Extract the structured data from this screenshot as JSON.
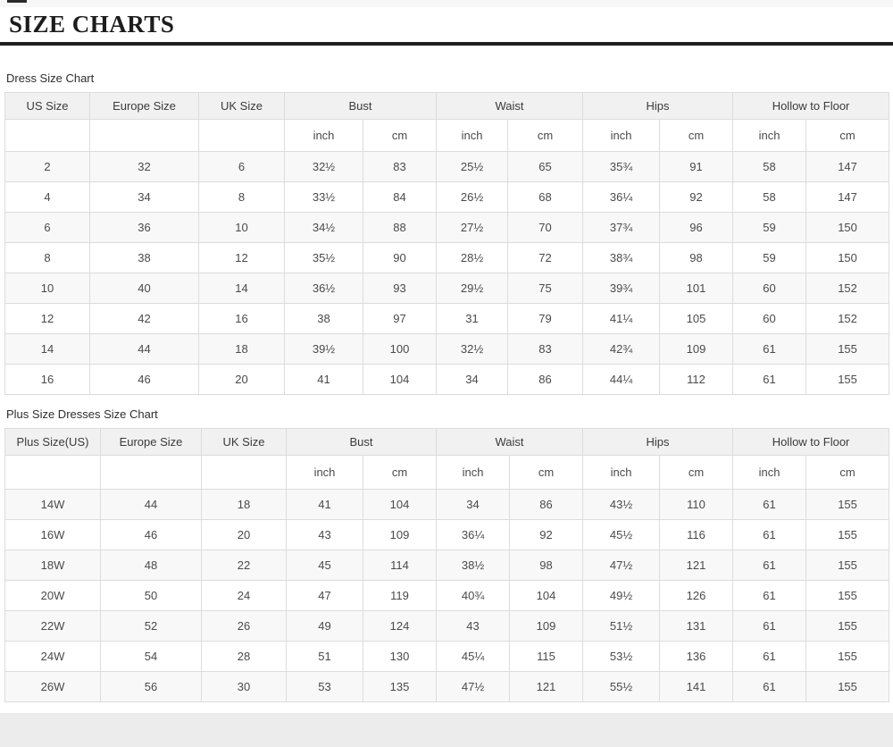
{
  "page": {
    "title": "SIZE CHARTS"
  },
  "tables": [
    {
      "caption": "Dress Size Chart",
      "columns": [
        {
          "label": "US Size",
          "span": 1
        },
        {
          "label": "Europe Size",
          "span": 1
        },
        {
          "label": "UK Size",
          "span": 1
        },
        {
          "label": "Bust",
          "span": 2
        },
        {
          "label": "Waist",
          "span": 2
        },
        {
          "label": "Hips",
          "span": 2
        },
        {
          "label": "Hollow to Floor",
          "span": 2
        }
      ],
      "units": [
        "",
        "",
        "",
        "inch",
        "cm",
        "inch",
        "cm",
        "inch",
        "cm",
        "inch",
        "cm"
      ],
      "rows": [
        [
          "2",
          "32",
          "6",
          "32½",
          "83",
          "25½",
          "65",
          "35¾",
          "91",
          "58",
          "147"
        ],
        [
          "4",
          "34",
          "8",
          "33½",
          "84",
          "26½",
          "68",
          "36¼",
          "92",
          "58",
          "147"
        ],
        [
          "6",
          "36",
          "10",
          "34½",
          "88",
          "27½",
          "70",
          "37¾",
          "96",
          "59",
          "150"
        ],
        [
          "8",
          "38",
          "12",
          "35½",
          "90",
          "28½",
          "72",
          "38¾",
          "98",
          "59",
          "150"
        ],
        [
          "10",
          "40",
          "14",
          "36½",
          "93",
          "29½",
          "75",
          "39¾",
          "101",
          "60",
          "152"
        ],
        [
          "12",
          "42",
          "16",
          "38",
          "97",
          "31",
          "79",
          "41¼",
          "105",
          "60",
          "152"
        ],
        [
          "14",
          "44",
          "18",
          "39½",
          "100",
          "32½",
          "83",
          "42¾",
          "109",
          "61",
          "155"
        ],
        [
          "16",
          "46",
          "20",
          "41",
          "104",
          "34",
          "86",
          "44¼",
          "112",
          "61",
          "155"
        ]
      ]
    },
    {
      "caption": "Plus Size Dresses Size Chart",
      "columns": [
        {
          "label": "Plus Size(US)",
          "span": 1
        },
        {
          "label": "Europe Size",
          "span": 1
        },
        {
          "label": "UK Size",
          "span": 1
        },
        {
          "label": "Bust",
          "span": 2
        },
        {
          "label": "Waist",
          "span": 2
        },
        {
          "label": "Hips",
          "span": 2
        },
        {
          "label": "Hollow to Floor",
          "span": 2
        }
      ],
      "units": [
        "",
        "",
        "",
        "inch",
        "cm",
        "inch",
        "cm",
        "inch",
        "cm",
        "inch",
        "cm"
      ],
      "rows": [
        [
          "14W",
          "44",
          "18",
          "41",
          "104",
          "34",
          "86",
          "43½",
          "110",
          "61",
          "155"
        ],
        [
          "16W",
          "46",
          "20",
          "43",
          "109",
          "36¼",
          "92",
          "45½",
          "116",
          "61",
          "155"
        ],
        [
          "18W",
          "48",
          "22",
          "45",
          "114",
          "38½",
          "98",
          "47½",
          "121",
          "61",
          "155"
        ],
        [
          "20W",
          "50",
          "24",
          "47",
          "119",
          "40¾",
          "104",
          "49½",
          "126",
          "61",
          "155"
        ],
        [
          "22W",
          "52",
          "26",
          "49",
          "124",
          "43",
          "109",
          "51½",
          "131",
          "61",
          "155"
        ],
        [
          "24W",
          "54",
          "28",
          "51",
          "130",
          "45¼",
          "115",
          "53½",
          "136",
          "61",
          "155"
        ],
        [
          "26W",
          "56",
          "30",
          "53",
          "135",
          "47½",
          "121",
          "55½",
          "141",
          "61",
          "155"
        ]
      ]
    }
  ]
}
